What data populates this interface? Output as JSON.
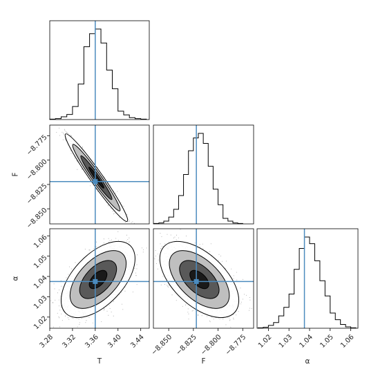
{
  "chart_data": {
    "type": "corner",
    "parameters": [
      {
        "name": "T",
        "label": "T",
        "range": [
          3.28,
          3.455
        ],
        "ticks": [
          "3.28",
          "3.32",
          "3.36",
          "3.40",
          "3.44"
        ],
        "tick_values": [
          3.28,
          3.32,
          3.36,
          3.4,
          3.44
        ],
        "truth": 3.36
      },
      {
        "name": "F",
        "label": "F",
        "range": [
          -8.8655,
          -8.764
        ],
        "ticks": [
          "−8.850",
          "−8.825",
          "−8.800",
          "−8.775"
        ],
        "tick_values": [
          -8.85,
          -8.825,
          -8.8,
          -8.775
        ],
        "truth": -8.822
      },
      {
        "name": "alpha",
        "label": "α",
        "range": [
          1.0145,
          1.0635
        ],
        "ticks": [
          "1.02",
          "1.03",
          "1.04",
          "1.05",
          "1.06"
        ],
        "tick_values": [
          1.02,
          1.03,
          1.04,
          1.05,
          1.06
        ],
        "truth": 1.0375
      }
    ],
    "histograms": [
      {
        "param": "T",
        "edges": [
          3.28,
          3.29,
          3.3,
          3.31,
          3.32,
          3.33,
          3.34,
          3.35,
          3.36,
          3.37,
          3.38,
          3.39,
          3.4,
          3.41,
          3.42,
          3.43,
          3.44,
          3.45
        ],
        "counts": [
          0.005,
          0.01,
          0.03,
          0.055,
          0.14,
          0.38,
          0.78,
          0.92,
          0.97,
          0.82,
          0.53,
          0.33,
          0.09,
          0.05,
          0.02,
          0.01,
          0.005
        ]
      },
      {
        "param": "F",
        "edges": [
          -8.865,
          -8.86,
          -8.855,
          -8.85,
          -8.845,
          -8.84,
          -8.835,
          -8.83,
          -8.825,
          -8.82,
          -8.815,
          -8.81,
          -8.805,
          -8.8,
          -8.795,
          -8.79,
          -8.785,
          -8.78,
          -8.775
        ],
        "counts": [
          0.005,
          0.01,
          0.03,
          0.075,
          0.16,
          0.31,
          0.54,
          0.8,
          0.94,
          0.99,
          0.88,
          0.63,
          0.38,
          0.21,
          0.06,
          0.03,
          0.01,
          0.005
        ]
      },
      {
        "param": "alpha",
        "edges": [
          1.015,
          1.0175,
          1.02,
          1.0225,
          1.025,
          1.0275,
          1.03,
          1.0325,
          1.035,
          1.0375,
          1.04,
          1.0425,
          1.045,
          1.0475,
          1.05,
          1.0525,
          1.055,
          1.0575,
          1.06,
          1.0625
        ],
        "counts": [
          0.005,
          0.01,
          0.03,
          0.06,
          0.13,
          0.22,
          0.36,
          0.62,
          0.84,
          0.96,
          0.89,
          0.71,
          0.5,
          0.34,
          0.16,
          0.09,
          0.04,
          0.015,
          0.005
        ]
      }
    ],
    "pairs": [
      {
        "x": "T",
        "y": "F",
        "mean": [
          3.362,
          -8.818
        ],
        "sd": [
          0.022,
          0.018
        ],
        "rho": -0.97
      },
      {
        "x": "T",
        "y": "alpha",
        "mean": [
          3.365,
          1.0385
        ],
        "sd": [
          0.026,
          0.0075
        ],
        "rho": 0.55
      },
      {
        "x": "F",
        "y": "alpha",
        "mean": [
          -8.819,
          1.0385
        ],
        "sd": [
          0.016,
          0.0075
        ],
        "rho": -0.55
      }
    ],
    "truth_color": "#4b8bbe",
    "line_color": "#000000",
    "fill_colors": [
      "#ffffff",
      "#bfbfbf",
      "#595959",
      "#1a1a1a"
    ]
  }
}
